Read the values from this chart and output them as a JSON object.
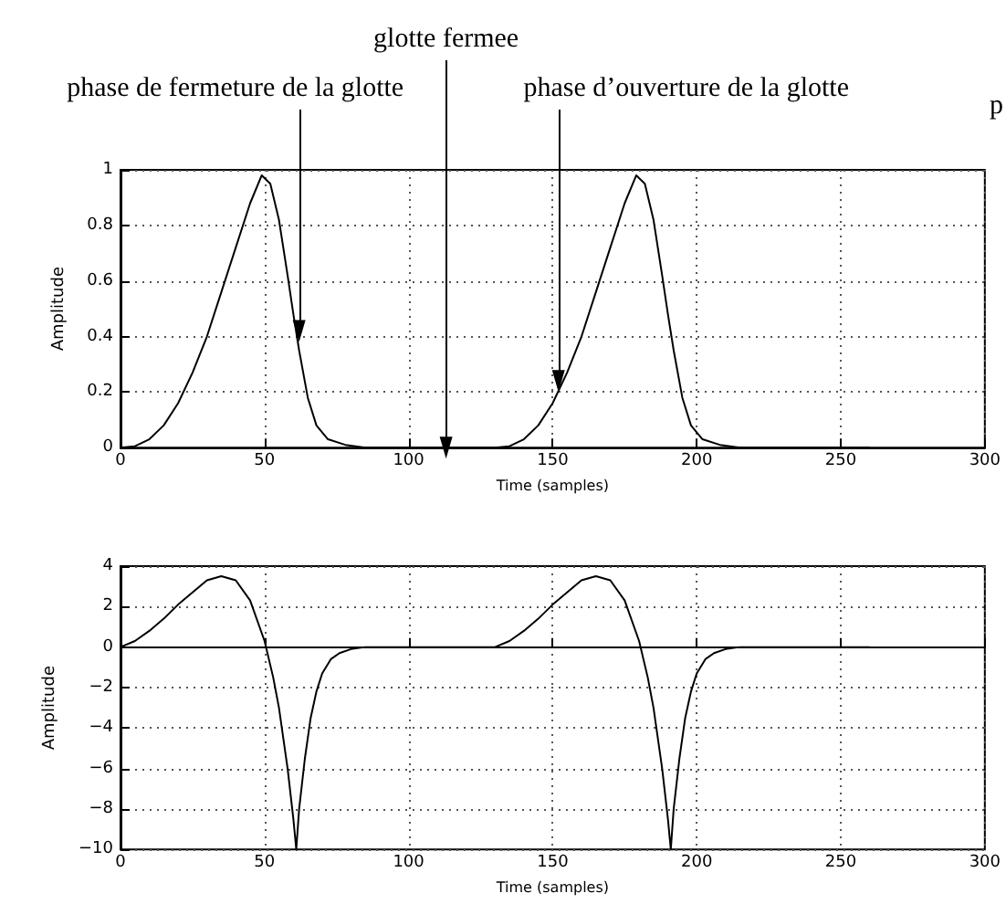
{
  "chart_data": [
    {
      "type": "line",
      "xlabel": "Time (samples)",
      "ylabel": "Amplitude",
      "xlim": [
        0,
        300
      ],
      "xticks": [
        0,
        50,
        100,
        150,
        200,
        250,
        300
      ],
      "ylim": [
        0,
        1
      ],
      "yticks": [
        0,
        0.2,
        0.4,
        0.6,
        0.8,
        1
      ],
      "grid": true,
      "marker": "none",
      "line_style": "solid",
      "x": [
        0,
        5,
        10,
        15,
        20,
        25,
        30,
        35,
        40,
        45,
        49,
        52,
        55,
        58,
        60,
        62,
        65,
        68,
        72,
        78,
        85,
        130,
        135,
        140,
        145,
        150,
        155,
        160,
        165,
        170,
        175,
        179,
        182,
        185,
        188,
        190,
        192,
        195,
        198,
        202,
        208,
        215,
        260
      ],
      "series": [
        {
          "color": "#000000",
          "values": [
            0,
            0.005,
            0.03,
            0.08,
            0.16,
            0.27,
            0.4,
            0.56,
            0.72,
            0.88,
            0.98,
            0.95,
            0.82,
            0.62,
            0.48,
            0.35,
            0.18,
            0.08,
            0.03,
            0.01,
            0,
            0,
            0.005,
            0.03,
            0.08,
            0.16,
            0.27,
            0.4,
            0.56,
            0.72,
            0.88,
            0.98,
            0.95,
            0.82,
            0.62,
            0.48,
            0.35,
            0.18,
            0.08,
            0.03,
            0.01,
            0,
            0
          ]
        }
      ],
      "annotations": [
        {
          "text": "phase de fermeture de la glotte",
          "x": 62,
          "y": 0.42
        },
        {
          "text": "glotte fermee",
          "x": 113,
          "y": 0
        },
        {
          "text": "phase d’ouverture de la glotte",
          "x": 152,
          "y": 0.24
        },
        "p"
      ]
    },
    {
      "type": "line",
      "xlabel": "Time (samples)",
      "ylabel": "Amplitude",
      "xlim": [
        0,
        300
      ],
      "xticks": [
        0,
        50,
        100,
        150,
        200,
        250,
        300
      ],
      "ylim": [
        -10,
        4
      ],
      "yticks": [
        -10,
        -8,
        -6,
        -4,
        -2,
        0,
        2,
        4
      ],
      "grid": true,
      "marker": "none",
      "line_style": "solid",
      "x": [
        0,
        5,
        10,
        15,
        20,
        25,
        30,
        35,
        40,
        45,
        50,
        53,
        55,
        58,
        60,
        61,
        62,
        64,
        66,
        68,
        70,
        73,
        76,
        80,
        85,
        130,
        135,
        140,
        145,
        150,
        155,
        160,
        165,
        170,
        175,
        180,
        183,
        185,
        188,
        190,
        191,
        192,
        194,
        196,
        198,
        200,
        203,
        206,
        210,
        215,
        260
      ],
      "series": [
        {
          "color": "#000000",
          "values": [
            0,
            0.3,
            0.8,
            1.4,
            2.1,
            2.7,
            3.3,
            3.5,
            3.3,
            2.3,
            0.3,
            -1.5,
            -3,
            -6,
            -8.5,
            -10,
            -8,
            -5.5,
            -3.5,
            -2.2,
            -1.3,
            -0.6,
            -0.3,
            -0.1,
            0,
            0,
            0.3,
            0.8,
            1.4,
            2.1,
            2.7,
            3.3,
            3.5,
            3.3,
            2.3,
            0.3,
            -1.5,
            -3,
            -6,
            -8.5,
            -10,
            -8,
            -5.5,
            -3.5,
            -2.2,
            -1.3,
            -0.6,
            -0.3,
            -0.1,
            0,
            0
          ]
        }
      ]
    }
  ]
}
